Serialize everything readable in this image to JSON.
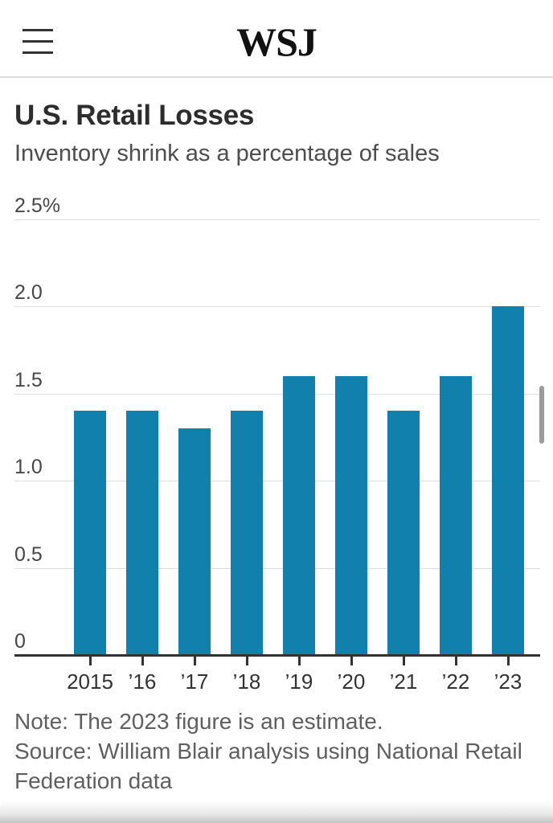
{
  "header": {
    "logo": "WSJ"
  },
  "article": {
    "title": "U.S. Retail Losses",
    "subtitle": "Inventory shrink as a percentage of sales",
    "note": "Note: The 2023 figure is an estimate.",
    "source": "Source: William Blair analysis using National Retail Federation data"
  },
  "chart_data": {
    "type": "bar",
    "title": "U.S. Retail Losses",
    "subtitle": "Inventory shrink as a percentage of sales",
    "categories": [
      "2015",
      "’16",
      "’17",
      "’18",
      "’19",
      "’20",
      "’21",
      "’22",
      "’23"
    ],
    "values": [
      1.4,
      1.4,
      1.3,
      1.4,
      1.6,
      1.6,
      1.4,
      1.6,
      2.0
    ],
    "xlabel": "",
    "ylabel": "Inventory shrink as a percentage of sales",
    "ylim": [
      0,
      2.5
    ],
    "y_ticks": [
      0,
      0.5,
      1.0,
      1.5,
      2.0,
      2.5
    ],
    "y_tick_labels": [
      "0",
      "0.5",
      "1.0",
      "1.5",
      "2.0",
      "2.5%"
    ],
    "grid": true,
    "legend": "none",
    "bar_color": "#1180AD",
    "note": "Note: The 2023 figure is an estimate.",
    "source": "Source: William Blair analysis using National Retail Federation data"
  }
}
